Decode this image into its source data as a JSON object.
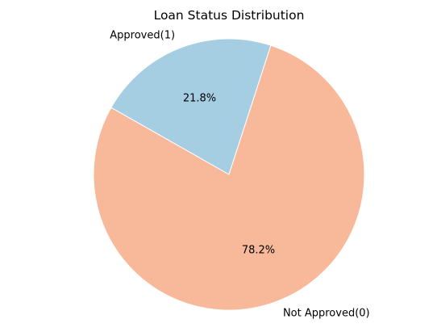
{
  "chart_data": {
    "type": "pie",
    "title": "Loan Status Distribution",
    "slices": [
      {
        "label": "Approved(1)",
        "value": 21.8,
        "pct_label": "21.8%",
        "color": "#a6cee3"
      },
      {
        "label": "Not Approved(0)",
        "value": 78.2,
        "pct_label": "78.2%",
        "color": "#f7b99a"
      }
    ],
    "start_angle_deg": 72,
    "direction": "counterclockwise",
    "legend": "none"
  }
}
